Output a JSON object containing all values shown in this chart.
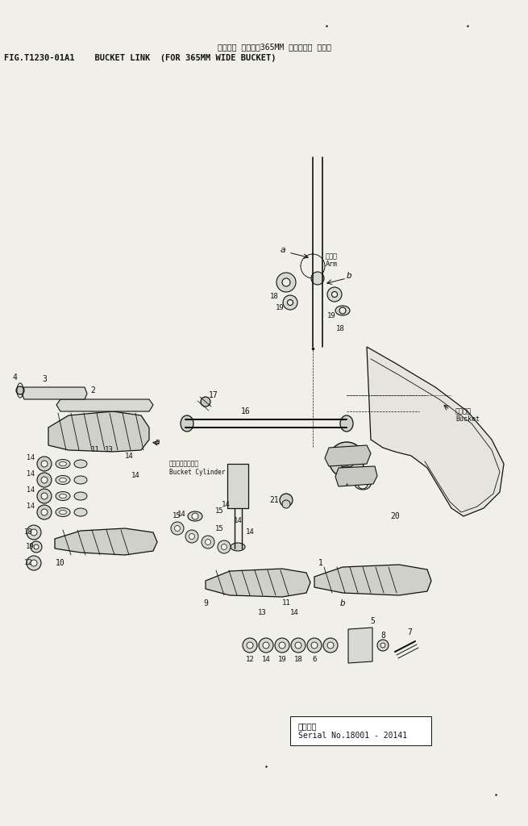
{
  "title_jp": "バケット リンク（365MM 幅バケット ヨウ）",
  "title_en": "FIG.T1230-01A1    BUCKET LINK  (FOR 365MM WIDE BUCKET)",
  "serial_jp": "適用号機",
  "serial_en": "Serial No.18001 - 20141",
  "bg": "#f0efe8",
  "lc": "#111111",
  "arm_jp": "アーム",
  "arm_en": "Arm",
  "bucket_jp": "バケット",
  "bucket_en": "Bucket",
  "cyl_jp": "バケットシリンダ",
  "cyl_en": "Bucket Cylinder"
}
